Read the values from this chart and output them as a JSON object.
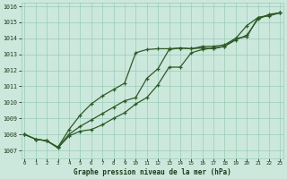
{
  "xlabel": "Graphe pression niveau de la mer (hPa)",
  "background_color": "#cce8dc",
  "plot_bg_color": "#cce8dc",
  "grid_color": "#99ccb8",
  "line_color": "#2d5a27",
  "ylim": [
    1006.5,
    1016.2
  ],
  "xlim": [
    -0.3,
    23.3
  ],
  "yticks": [
    1007,
    1008,
    1009,
    1010,
    1011,
    1012,
    1013,
    1014,
    1015,
    1016
  ],
  "x_labels": [
    "0",
    "1",
    "2",
    "3",
    "4",
    "5",
    "6",
    "7",
    "8",
    "9",
    "10",
    "11",
    "12",
    "13",
    "14",
    "15",
    "16",
    "17",
    "18",
    "19",
    "20",
    "21",
    "22",
    "23"
  ],
  "series1": [
    1008.0,
    1007.7,
    1007.6,
    1007.2,
    1008.0,
    1008.5,
    1008.9,
    1009.3,
    1009.7,
    1010.1,
    1010.3,
    1011.5,
    1012.1,
    1013.3,
    1013.4,
    1013.35,
    1013.4,
    1013.35,
    1013.5,
    1014.0,
    1014.1,
    1015.3,
    1015.4,
    1015.6
  ],
  "series2": [
    1008.0,
    1007.7,
    1007.6,
    1007.2,
    1008.3,
    1009.2,
    1009.9,
    1010.4,
    1010.8,
    1011.2,
    1013.1,
    1013.3,
    1013.35,
    1013.35,
    1013.4,
    1013.35,
    1013.5,
    1013.5,
    1013.6,
    1014.0,
    1014.8,
    1015.3,
    1015.45,
    1015.6
  ],
  "series3": [
    1008.0,
    1007.7,
    1007.6,
    1007.15,
    1007.9,
    1008.2,
    1008.3,
    1008.6,
    1009.0,
    1009.35,
    1009.9,
    1010.3,
    1011.1,
    1012.2,
    1012.2,
    1013.1,
    1013.3,
    1013.4,
    1013.5,
    1013.9,
    1014.2,
    1015.2,
    1015.5,
    1015.6
  ]
}
